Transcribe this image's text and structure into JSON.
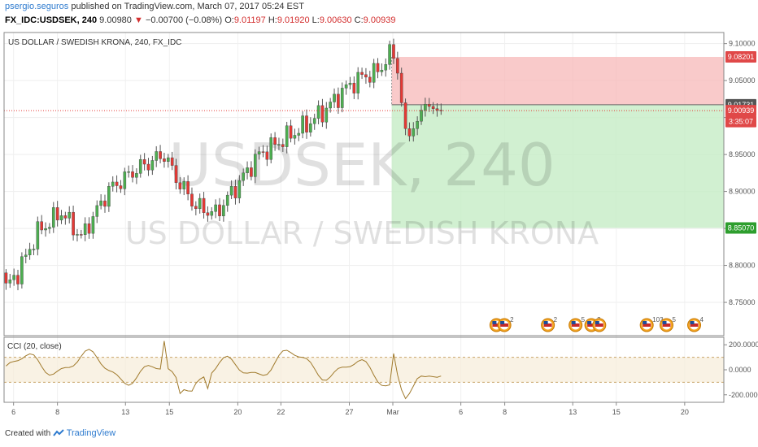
{
  "header": {
    "author": "psergio.seguros",
    "published_text": "published on TradingView.com, March 07, 2017 05:24 EST",
    "symbol": "FX_IDC:USDSEK, 240",
    "last": "9.00980",
    "arrow": "▼",
    "change": "−0.00700 (−0.08%)",
    "o_label": "O:",
    "o": "9.01197",
    "h_label": "H:",
    "h": "9.01920",
    "l_label": "L:",
    "l": "9.00630",
    "c_label": "C:",
    "c": "9.00939"
  },
  "footer": {
    "created_with": "Created with",
    "brand": "TradingView"
  },
  "colors": {
    "up": "#4caf50",
    "down": "#e53935",
    "cci_line": "#a07a2c",
    "stop_zone": "#f7b8b8",
    "target_zone": "#c6ecc6",
    "tag_red": "#e04848",
    "tag_green": "#2e9e2e",
    "tag_dark": "#555555"
  },
  "chart_data": {
    "type": "candlestick",
    "title": "US DOLLAR / SWEDISH KRONA, 240, FX_IDC",
    "watermark_symbol": "USDSEK, 240",
    "watermark_name": "US DOLLAR / SWEDISH KRONA",
    "y_ticks": [
      "9.10000",
      "9.05000",
      "9.00000",
      "8.95000",
      "8.90000",
      "8.85000",
      "8.80000",
      "8.75000"
    ],
    "y_tick_values": [
      9.1,
      9.05,
      9.0,
      8.95,
      8.9,
      8.85,
      8.8,
      8.75
    ],
    "ylim": [
      8.705,
      9.115
    ],
    "x_ticks": [
      "6",
      "8",
      "13",
      "15",
      "20",
      "22",
      "27",
      "Mar",
      "6",
      "8",
      "13",
      "15",
      "20"
    ],
    "x_tick_slots": [
      2.4,
      13.5,
      30.7,
      41.8,
      59.1,
      70.0,
      87.3,
      98.3,
      115.5,
      126.6,
      143.8,
      154.8,
      172.1
    ],
    "candles": [],
    "price_tags": [
      {
        "label": "9.08201",
        "value": 9.08201,
        "color": "red"
      },
      {
        "label": "9.01731",
        "value": 9.01731,
        "color": "dark"
      },
      {
        "label": "9.00939",
        "value": 9.00939,
        "color": "red"
      },
      {
        "label": "3:35:07",
        "value": 8.9945,
        "color": "red"
      },
      {
        "label": "8.85070",
        "value": 8.8507,
        "color": "green"
      }
    ],
    "position": {
      "entry": 9.01731,
      "stop": 9.08201,
      "target": 8.8507,
      "current": 9.00939
    },
    "events": [
      {
        "label": ""
      },
      {
        "label": "2"
      },
      {
        "label": "2"
      },
      {
        "label": "5"
      },
      {
        "label": "2"
      },
      {
        "label": ""
      },
      {
        "label": "103"
      },
      {
        "label": "5"
      },
      {
        "label": "4"
      }
    ],
    "cci": {
      "label": "CCI (20, close)",
      "y_ticks": [
        "200.0000",
        "0.0000",
        "-200.0000"
      ],
      "y_tick_values": [
        200,
        0,
        -200
      ],
      "upper": 100,
      "lower": -100,
      "ylim": [
        -260,
        260
      ]
    }
  }
}
